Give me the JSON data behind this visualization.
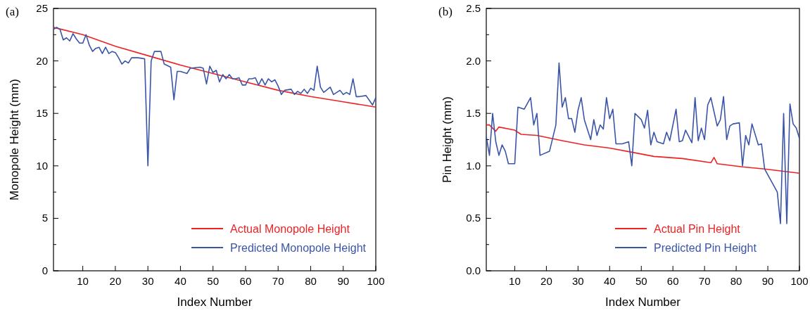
{
  "chart_data": [
    {
      "type": "line",
      "title": "(a)",
      "xlabel": "Index Number",
      "ylabel": "Monopole Height (mm)",
      "xlim": [
        1,
        100
      ],
      "xticks": [
        10,
        20,
        30,
        40,
        50,
        60,
        70,
        80,
        90,
        100
      ],
      "ylim": [
        0,
        25
      ],
      "yticks": [
        0,
        {
          "value": 2.5,
          "label": null
        },
        5,
        {
          "value": 7.5,
          "label": null
        },
        10,
        {
          "value": 12.5,
          "label": null
        },
        15,
        {
          "value": 17.5,
          "label": null
        },
        20,
        {
          "value": 22.5,
          "label": null
        },
        25
      ],
      "legend": "bottom right",
      "grid": false,
      "line_style": "solid",
      "series": [
        {
          "name": "Actual Monopole Height",
          "color": "#ee2222",
          "x": [
            1,
            10,
            20,
            30,
            40,
            50,
            60,
            70,
            80,
            90,
            100
          ],
          "values": [
            23.2,
            22.5,
            21.4,
            20.5,
            19.6,
            18.8,
            18.0,
            17.2,
            16.6,
            16.1,
            15.6
          ]
        },
        {
          "name": "Predicted Monopole Height",
          "color": "#3a55a8",
          "x": [
            1,
            2,
            3,
            4,
            5,
            6,
            7,
            8,
            9,
            10,
            11,
            12,
            13,
            14,
            15,
            16,
            17,
            18,
            19,
            20,
            21,
            22,
            23,
            24,
            25,
            27,
            29,
            30,
            31,
            32,
            34,
            35,
            37,
            38,
            39,
            40,
            42,
            43,
            46,
            47,
            48,
            49,
            50,
            51,
            52,
            53,
            54,
            55,
            56,
            57,
            58,
            59,
            60,
            61,
            62,
            63,
            64,
            65,
            66,
            67,
            68,
            69,
            70,
            71,
            72,
            74,
            75,
            76,
            77,
            78,
            79,
            80,
            81,
            82,
            83,
            84,
            86,
            87,
            89,
            90,
            91,
            92,
            93,
            94,
            95,
            97,
            99,
            100
          ],
          "values": [
            23.0,
            23.2,
            23.0,
            22.0,
            22.2,
            21.9,
            22.6,
            22.1,
            21.7,
            21.7,
            22.5,
            21.5,
            20.9,
            21.2,
            21.3,
            20.7,
            21.3,
            20.7,
            20.9,
            20.8,
            20.3,
            19.7,
            20.0,
            19.8,
            20.3,
            20.3,
            20.2,
            10.0,
            20.0,
            20.9,
            20.9,
            19.7,
            19.4,
            16.3,
            19.0,
            19.0,
            18.8,
            19.3,
            19.4,
            19.3,
            17.8,
            19.5,
            18.9,
            19.1,
            18.0,
            18.7,
            18.3,
            18.7,
            18.3,
            18.3,
            18.4,
            17.7,
            17.7,
            18.3,
            18.3,
            18.4,
            17.7,
            18.3,
            17.7,
            18.3,
            18.0,
            18.2,
            17.6,
            16.8,
            17.2,
            17.3,
            16.8,
            17.1,
            16.9,
            17.3,
            16.9,
            17.4,
            17.2,
            19.5,
            17.5,
            17.0,
            17.5,
            16.8,
            17.2,
            16.8,
            17.0,
            16.8,
            18.3,
            16.6,
            16.6,
            16.7,
            15.8,
            16.5
          ]
        }
      ]
    },
    {
      "type": "line",
      "title": "(b)",
      "xlabel": "Index Number",
      "ylabel": "Pin Height (mm)",
      "xlim": [
        1,
        100
      ],
      "xticks": [
        10,
        20,
        30,
        40,
        50,
        60,
        70,
        80,
        90,
        100
      ],
      "ylim": [
        0,
        2.5
      ],
      "yticks": [
        {
          "value": 0,
          "label": "0.0"
        },
        {
          "value": 0.25,
          "label": null
        },
        {
          "value": 0.5,
          "label": "0.5"
        },
        {
          "value": 0.75,
          "label": null
        },
        {
          "value": 1,
          "label": "1.0"
        },
        {
          "value": 1.25,
          "label": null
        },
        {
          "value": 1.5,
          "label": "1.5"
        },
        {
          "value": 1.75,
          "label": null
        },
        {
          "value": 2,
          "label": "2.0"
        },
        {
          "value": 2.25,
          "label": null
        },
        {
          "value": 2.5,
          "label": "2.5"
        }
      ],
      "legend": "bottom right",
      "grid": false,
      "line_style": "solid",
      "series": [
        {
          "name": "Actual Pin Height",
          "color": "#ee2222",
          "x": [
            1,
            2,
            4,
            5,
            10,
            12,
            17,
            25,
            32,
            40,
            47,
            54,
            63,
            72,
            73,
            74,
            82,
            89,
            100
          ],
          "values": [
            1.39,
            1.39,
            1.33,
            1.37,
            1.34,
            1.3,
            1.29,
            1.24,
            1.2,
            1.17,
            1.13,
            1.09,
            1.07,
            1.03,
            1.08,
            1.02,
            0.99,
            0.97,
            0.93
          ]
        },
        {
          "name": "Predicted Pin Height",
          "color": "#3a55a8",
          "x": [
            1,
            2,
            3,
            4,
            5,
            6,
            7,
            8,
            10,
            11,
            13,
            15,
            16,
            17,
            18,
            21,
            23,
            24,
            25,
            26,
            27,
            28,
            29,
            30,
            31,
            32,
            34,
            35,
            36,
            37,
            38,
            39,
            40,
            41,
            42,
            44,
            46,
            47,
            48,
            50,
            51,
            52,
            53,
            54,
            55,
            57,
            58,
            59,
            61,
            62,
            63,
            64,
            66,
            67,
            68,
            69,
            70,
            71,
            72,
            74,
            75,
            76,
            77,
            78,
            79,
            81,
            82,
            83,
            84,
            85,
            87,
            88,
            89,
            91,
            93,
            94,
            95,
            96,
            97,
            98,
            99,
            100
          ],
          "values": [
            1.28,
            1.1,
            1.5,
            1.23,
            1.1,
            1.2,
            1.14,
            1.02,
            1.02,
            1.56,
            1.54,
            1.65,
            1.39,
            1.5,
            1.1,
            1.14,
            1.39,
            1.98,
            1.56,
            1.65,
            1.45,
            1.45,
            1.32,
            1.53,
            1.65,
            1.44,
            1.25,
            1.44,
            1.29,
            1.39,
            1.35,
            1.65,
            1.45,
            1.54,
            1.21,
            1.21,
            1.23,
            1.0,
            1.5,
            1.44,
            1.36,
            1.53,
            1.2,
            1.32,
            1.23,
            1.21,
            1.32,
            1.24,
            1.54,
            1.23,
            1.24,
            1.34,
            1.22,
            1.65,
            1.24,
            1.36,
            1.25,
            1.58,
            1.65,
            1.38,
            1.44,
            1.66,
            1.25,
            1.38,
            1.4,
            1.41,
            1.0,
            1.29,
            1.2,
            1.4,
            1.2,
            1.21,
            0.97,
            0.86,
            0.75,
            0.45,
            1.5,
            0.45,
            1.59,
            1.4,
            1.36,
            1.26
          ]
        }
      ]
    }
  ]
}
